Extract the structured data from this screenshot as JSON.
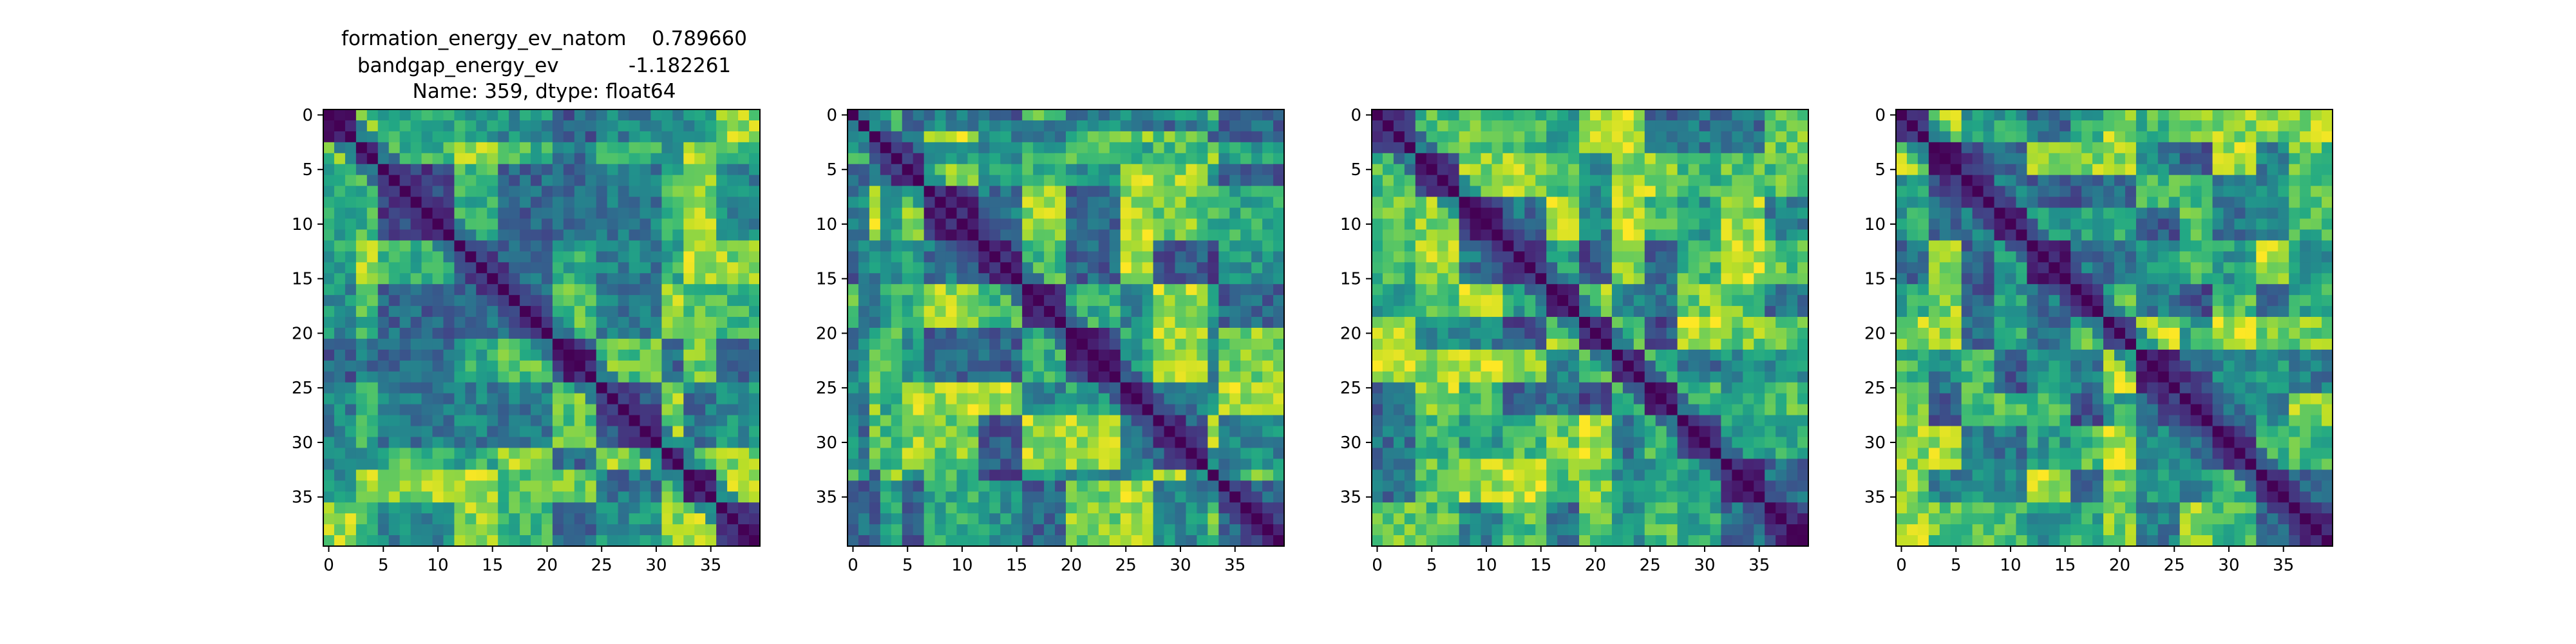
{
  "figure": {
    "title_lines": [
      "formation_energy_ev_natom    0.789660",
      "bandgap_energy_ev           -1.182261",
      "Name: 359, dtype: float64"
    ]
  },
  "colors": {
    "colormap": "viridis",
    "axes_frame": "#000000",
    "background": "#ffffff"
  },
  "chart_data": [
    {
      "type": "heatmap",
      "size": 40,
      "seed": 359,
      "blocks": [
        0,
        3,
        5,
        12,
        16,
        21,
        25,
        31,
        33,
        36,
        40
      ],
      "x_ticks": [
        0,
        5,
        10,
        15,
        20,
        25,
        30,
        35
      ],
      "y_ticks": [
        0,
        5,
        10,
        15,
        20,
        25,
        30,
        35
      ],
      "diagonal": 0,
      "grid": false
    },
    {
      "type": "heatmap",
      "size": 40,
      "seed": 1701,
      "blocks": [
        0,
        1,
        2,
        3,
        5,
        7,
        12,
        16,
        20,
        25,
        28,
        33,
        34,
        40
      ],
      "x_ticks": [
        0,
        5,
        10,
        15,
        20,
        25,
        30,
        35
      ],
      "y_ticks": [
        0,
        5,
        10,
        15,
        20,
        25,
        30,
        35
      ],
      "diagonal": 0,
      "grid": false
    },
    {
      "type": "heatmap",
      "size": 40,
      "seed": 2718,
      "blocks": [
        0,
        4,
        8,
        12,
        16,
        19,
        22,
        25,
        28,
        32,
        36,
        40
      ],
      "x_ticks": [
        0,
        5,
        10,
        15,
        20,
        25,
        30,
        35
      ],
      "y_ticks": [
        0,
        5,
        10,
        15,
        20,
        25,
        30,
        35
      ],
      "diagonal": 0,
      "grid": false
    },
    {
      "type": "heatmap",
      "size": 40,
      "seed": 3141,
      "blocks": [
        0,
        3,
        6,
        9,
        12,
        16,
        19,
        22,
        26,
        29,
        33,
        36,
        40
      ],
      "x_ticks": [
        0,
        5,
        10,
        15,
        20,
        25,
        30,
        35
      ],
      "y_ticks": [
        0,
        5,
        10,
        15,
        20,
        25,
        30,
        35
      ],
      "diagonal": 0,
      "grid": false
    }
  ]
}
